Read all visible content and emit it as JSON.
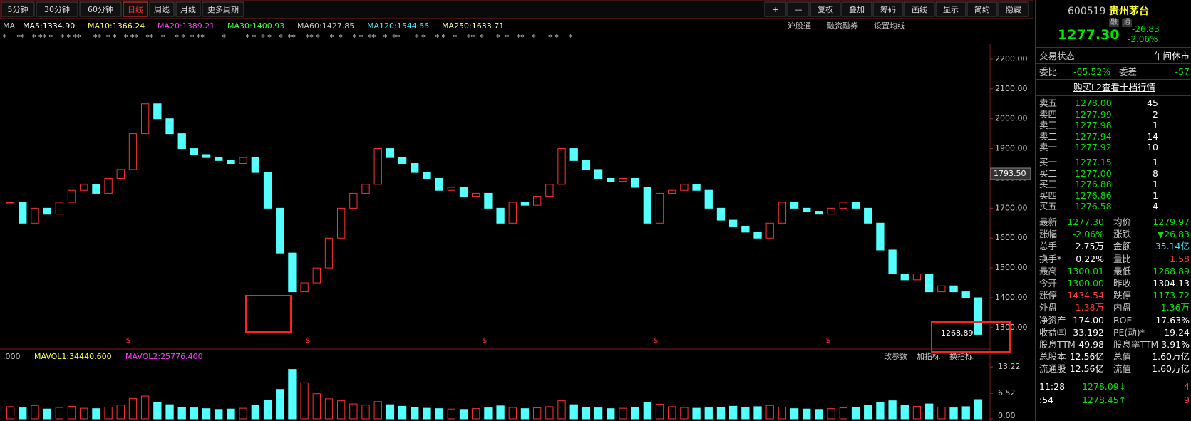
{
  "toolbar": {
    "periods": [
      "5分钟",
      "30分钟",
      "60分钟",
      "日线",
      "周线",
      "月线",
      "更多周期"
    ],
    "active_period": 3,
    "buttons": [
      "+",
      "—",
      "复权",
      "叠加",
      "筹码",
      "画线",
      "显示",
      "简约",
      "隐藏"
    ]
  },
  "ma_legend": {
    "items": [
      {
        "text": "MA",
        "color": "#c8c8c8"
      },
      {
        "text": "MA5:1334.90",
        "color": "#ffffff"
      },
      {
        "text": "MA10:1366.24",
        "color": "#ffff3c"
      },
      {
        "text": "MA20:1389.21",
        "color": "#ff3cff"
      },
      {
        "text": "MA30:1400.93",
        "color": "#3cff3c"
      },
      {
        "text": "MA60:1427.85",
        "color": "#c8c8c8"
      },
      {
        "text": "MA120:1544.55",
        "color": "#3cf0ff"
      },
      {
        "text": "MA250:1633.71",
        "color": "#ffff9c"
      }
    ],
    "links": [
      "沪股通",
      "融资融券",
      "设置均线"
    ]
  },
  "marker_row": "*    **   * ** *   * * **     **  * *   * **   **   *    * *  * **       *        * *  * *   *  **    ** *    *  *    * *  **   *  **      * *    * *   *    **  *     *  *   **   *     * *    *",
  "dividend_marker": "$",
  "annotations": {
    "cursor_price": "1793.50",
    "low_price": "1268.89"
  },
  "chart_data": {
    "type": "candlestick",
    "colors": {
      "up": "#ff3232",
      "down": "#54ffff"
    },
    "ylim": [
      1240,
      2250
    ],
    "yticks": [
      {
        "value": 2200,
        "label": "2200.00"
      },
      {
        "value": 2100,
        "label": "2100.00"
      },
      {
        "value": 2000,
        "label": "2000.00"
      },
      {
        "value": 1900,
        "label": "1900.00"
      },
      {
        "value": 1800,
        "label": "1800.00"
      },
      {
        "value": 1700,
        "label": "1700.00"
      },
      {
        "value": 1600,
        "label": "1600.00"
      },
      {
        "value": 1500,
        "label": "1500.00"
      },
      {
        "value": 1400,
        "label": "1400.00"
      },
      {
        "value": 1300,
        "label": "1300.00"
      }
    ],
    "close": [
      1720,
      1650,
      1700,
      1680,
      1720,
      1760,
      1780,
      1750,
      1800,
      1830,
      1950,
      2050,
      2000,
      1950,
      1900,
      1880,
      1870,
      1860,
      1850,
      1870,
      1820,
      1700,
      1550,
      1420,
      1450,
      1500,
      1600,
      1700,
      1750,
      1780,
      1900,
      1870,
      1850,
      1820,
      1800,
      1760,
      1770,
      1740,
      1750,
      1700,
      1650,
      1720,
      1710,
      1740,
      1780,
      1900,
      1860,
      1830,
      1800,
      1790,
      1800,
      1770,
      1650,
      1750,
      1760,
      1780,
      1760,
      1700,
      1660,
      1640,
      1620,
      1600,
      1650,
      1720,
      1700,
      1690,
      1680,
      1700,
      1720,
      1700,
      1650,
      1560,
      1480,
      1460,
      1480,
      1420,
      1440,
      1420,
      1400,
      1277.3
    ]
  },
  "volume_legend": {
    "items": [
      {
        "text": ".000",
        "color": "#c8c8c8"
      },
      {
        "text": "MAVOL1:34440.600",
        "color": "#ffff3c"
      },
      {
        "text": "MAVOL2:25776.400",
        "color": "#ff3cff"
      }
    ],
    "links": [
      "改参数",
      "加指标",
      "换指标"
    ]
  },
  "volume_data": {
    "type": "bar",
    "ylim": [
      0,
      13.8
    ],
    "yticks": [
      {
        "value": 13.22,
        "label": "13.22"
      },
      {
        "value": 6.52,
        "label": "6.52"
      },
      {
        "value": 0,
        "label": "0.00"
      }
    ],
    "values": [
      3.1,
      2.8,
      3.4,
      2.5,
      2.9,
      3.2,
      2.7,
      2.6,
      3.0,
      3.5,
      5.2,
      5.8,
      4.1,
      3.6,
      3.0,
      2.8,
      2.6,
      2.4,
      2.5,
      2.7,
      3.4,
      4.8,
      7.5,
      12.6,
      9.2,
      6.4,
      5.1,
      4.6,
      3.8,
      3.5,
      4.4,
      3.6,
      3.2,
      2.9,
      2.7,
      2.6,
      2.5,
      2.4,
      2.6,
      2.8,
      3.3,
      2.9,
      2.6,
      2.8,
      3.1,
      4.6,
      3.6,
      3.0,
      2.8,
      2.6,
      2.7,
      2.9,
      4.2,
      3.7,
      3.1,
      2.9,
      2.7,
      2.8,
      3.0,
      3.2,
      2.9,
      3.1,
      3.4,
      3.0,
      2.6,
      2.5,
      2.4,
      2.6,
      2.8,
      2.9,
      3.4,
      4.1,
      4.6,
      3.5,
      3.2,
      3.8,
      3.0,
      2.8,
      3.1,
      4.9
    ]
  },
  "quote": {
    "code": "600519",
    "name": "贵州茅台",
    "badges": [
      "融",
      "通"
    ],
    "price": "1277.30",
    "change": "-26.83",
    "change_pct": "-2.06%",
    "status": [
      "交易状态",
      "午间休市"
    ],
    "weibi": [
      "委比",
      "-65.52%",
      "委差",
      "-57"
    ],
    "l2_link": "购买L2查看十档行情",
    "asks": [
      [
        "卖五",
        "1278.00",
        "45"
      ],
      [
        "卖四",
        "1277.99",
        "2"
      ],
      [
        "卖三",
        "1277.98",
        "1"
      ],
      [
        "卖二",
        "1277.94",
        "14"
      ],
      [
        "卖一",
        "1277.92",
        "10"
      ]
    ],
    "bids": [
      [
        "买一",
        "1277.15",
        "1"
      ],
      [
        "买二",
        "1277.00",
        "8"
      ],
      [
        "买三",
        "1276.88",
        "1"
      ],
      [
        "买四",
        "1276.86",
        "1"
      ],
      [
        "买五",
        "1276.58",
        "4"
      ]
    ],
    "stats": [
      {
        "cells": [
          "最新",
          "1277.30",
          "均价",
          "1279.97"
        ],
        "colors": [
          "label",
          "green",
          "label",
          "green"
        ]
      },
      {
        "cells": [
          "涨幅",
          "-2.06%",
          "涨跌",
          "▼26.83"
        ],
        "colors": [
          "label",
          "green",
          "label",
          "green"
        ]
      },
      {
        "cells": [
          "总手",
          "2.75万",
          "金额",
          "35.14亿"
        ],
        "colors": [
          "label",
          "white",
          "label",
          "cyan"
        ]
      },
      {
        "cells": [
          "换手*",
          "0.22%",
          "量比",
          "1.58"
        ],
        "colors": [
          "label",
          "white",
          "label",
          "red"
        ]
      },
      {
        "cells": [
          "最高",
          "1300.01",
          "最低",
          "1268.89"
        ],
        "colors": [
          "label",
          "green",
          "label",
          "green"
        ]
      },
      {
        "cells": [
          "今开",
          "1300.00",
          "昨收",
          "1304.13"
        ],
        "colors": [
          "label",
          "green",
          "label",
          "white"
        ]
      },
      {
        "cells": [
          "涨停",
          "1434.54",
          "跌停",
          "1173.72"
        ],
        "colors": [
          "label",
          "red",
          "label",
          "green"
        ]
      },
      {
        "cells": [
          "外盘",
          "1.38万",
          "内盘",
          "1.36万"
        ],
        "colors": [
          "label",
          "red",
          "label",
          "green"
        ]
      },
      {
        "cells": [
          "净资产",
          "174.00",
          "ROE",
          "17.63%"
        ],
        "colors": [
          "label",
          "white",
          "label",
          "white"
        ]
      },
      {
        "cells": [
          "收益㈢",
          "33.192",
          "PE(动)*",
          "19.24"
        ],
        "colors": [
          "label",
          "white",
          "label",
          "white"
        ]
      },
      {
        "cells": [
          "股息TTM",
          "49.98",
          "股息率TTM",
          "3.91%"
        ],
        "colors": [
          "label",
          "white",
          "label",
          "white"
        ]
      },
      {
        "cells": [
          "总股本",
          "12.56亿",
          "总值",
          "1.60万亿"
        ],
        "colors": [
          "label",
          "white",
          "label",
          "white"
        ]
      },
      {
        "cells": [
          "流通股",
          "12.56亿",
          "流值",
          "1.60万亿"
        ],
        "colors": [
          "label",
          "white",
          "label",
          "white"
        ]
      }
    ],
    "trades": [
      {
        "cells": [
          "11:28",
          "1278.09↓",
          "4"
        ],
        "colors": [
          "white",
          "green",
          "red"
        ]
      },
      {
        "cells": [
          ":54",
          "1278.45↑",
          "9"
        ],
        "colors": [
          "white",
          "green",
          "red"
        ]
      }
    ]
  }
}
